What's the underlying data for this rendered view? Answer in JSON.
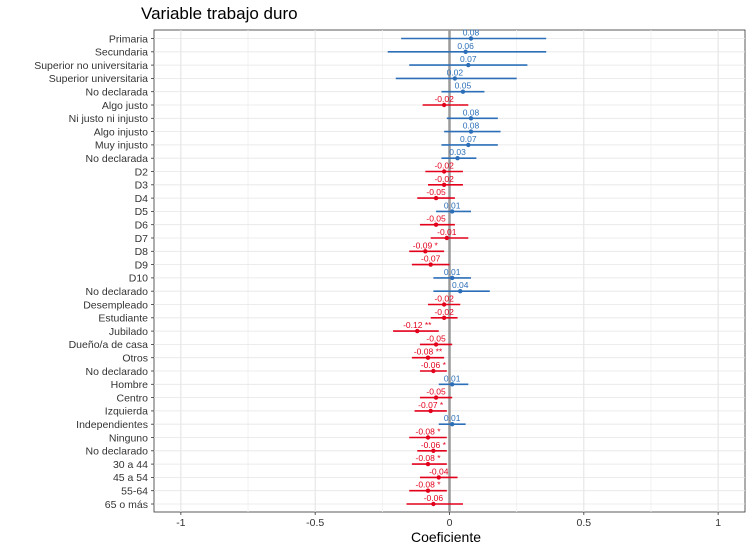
{
  "chart_data": {
    "type": "coefficient-plot",
    "title": "Variable trabajo duro",
    "xlabel": "Coeficiente",
    "xlim": [
      -1.1,
      1.1
    ],
    "xticks": [
      -1,
      -0.5,
      0,
      0.5,
      1
    ],
    "xtick_labels": [
      "-1",
      "-0.5",
      "0",
      "0.5",
      "1"
    ],
    "colors": {
      "positive": "#2c6fb8",
      "negative": "#e3001b",
      "zero_line": "#9a9a9a"
    },
    "rows": [
      {
        "label": "Primaria",
        "coef": 0.08,
        "lo": -0.18,
        "hi": 0.36,
        "text": "0.08"
      },
      {
        "label": "Secundaria",
        "coef": 0.06,
        "lo": -0.23,
        "hi": 0.36,
        "text": "0.06"
      },
      {
        "label": "Superior no universitaria",
        "coef": 0.07,
        "lo": -0.15,
        "hi": 0.29,
        "text": "0.07"
      },
      {
        "label": "Superior universitaria",
        "coef": 0.02,
        "lo": -0.2,
        "hi": 0.25,
        "text": "0.02"
      },
      {
        "label": "No declarada",
        "coef": 0.05,
        "lo": -0.03,
        "hi": 0.13,
        "text": "0.05"
      },
      {
        "label": "Algo justo",
        "coef": -0.02,
        "lo": -0.1,
        "hi": 0.07,
        "text": "-0.02"
      },
      {
        "label": "Ni justo ni injusto",
        "coef": 0.08,
        "lo": -0.01,
        "hi": 0.18,
        "text": "0.08"
      },
      {
        "label": "Algo injusto",
        "coef": 0.08,
        "lo": -0.02,
        "hi": 0.19,
        "text": "0.08"
      },
      {
        "label": "Muy injusto",
        "coef": 0.07,
        "lo": -0.03,
        "hi": 0.18,
        "text": "0.07"
      },
      {
        "label": "No declarada",
        "coef": 0.03,
        "lo": -0.03,
        "hi": 0.1,
        "text": "0.03"
      },
      {
        "label": "D2",
        "coef": -0.02,
        "lo": -0.09,
        "hi": 0.05,
        "text": "-0.02"
      },
      {
        "label": "D3",
        "coef": -0.02,
        "lo": -0.08,
        "hi": 0.05,
        "text": "-0.02"
      },
      {
        "label": "D4",
        "coef": -0.05,
        "lo": -0.12,
        "hi": 0.02,
        "text": "-0.05"
      },
      {
        "label": "D5",
        "coef": 0.01,
        "lo": -0.05,
        "hi": 0.08,
        "text": "0.01"
      },
      {
        "label": "D6",
        "coef": -0.05,
        "lo": -0.11,
        "hi": 0.02,
        "text": "-0.05"
      },
      {
        "label": "D7",
        "coef": -0.01,
        "lo": -0.07,
        "hi": 0.07,
        "text": "-0.01"
      },
      {
        "label": "D8",
        "coef": -0.09,
        "lo": -0.15,
        "hi": -0.02,
        "text": "-0.09 *"
      },
      {
        "label": "D9",
        "coef": -0.07,
        "lo": -0.14,
        "hi": 0.0,
        "text": "-0.07"
      },
      {
        "label": "D10",
        "coef": 0.01,
        "lo": -0.06,
        "hi": 0.08,
        "text": "0.01"
      },
      {
        "label": "No declarado",
        "coef": 0.04,
        "lo": -0.06,
        "hi": 0.15,
        "text": "0.04"
      },
      {
        "label": "Desempleado",
        "coef": -0.02,
        "lo": -0.08,
        "hi": 0.04,
        "text": "-0.02"
      },
      {
        "label": "Estudiante",
        "coef": -0.02,
        "lo": -0.07,
        "hi": 0.03,
        "text": "-0.02"
      },
      {
        "label": "Jubilado",
        "coef": -0.12,
        "lo": -0.21,
        "hi": -0.04,
        "text": "-0.12 **"
      },
      {
        "label": "Dueño/a de casa",
        "coef": -0.05,
        "lo": -0.11,
        "hi": 0.01,
        "text": "-0.05"
      },
      {
        "label": "Otros",
        "coef": -0.08,
        "lo": -0.14,
        "hi": -0.02,
        "text": "-0.08 **"
      },
      {
        "label": "No declarado",
        "coef": -0.06,
        "lo": -0.11,
        "hi": -0.01,
        "text": "-0.06 *"
      },
      {
        "label": "Hombre",
        "coef": 0.01,
        "lo": -0.04,
        "hi": 0.07,
        "text": "0.01"
      },
      {
        "label": "Centro",
        "coef": -0.05,
        "lo": -0.11,
        "hi": 0.01,
        "text": "-0.05"
      },
      {
        "label": "Izquierda",
        "coef": -0.07,
        "lo": -0.13,
        "hi": -0.01,
        "text": "-0.07 *"
      },
      {
        "label": "Independientes",
        "coef": 0.01,
        "lo": -0.04,
        "hi": 0.06,
        "text": "0.01"
      },
      {
        "label": "Ninguno",
        "coef": -0.08,
        "lo": -0.15,
        "hi": -0.01,
        "text": "-0.08 *"
      },
      {
        "label": "No declarado",
        "coef": -0.06,
        "lo": -0.12,
        "hi": -0.01,
        "text": "-0.06 *"
      },
      {
        "label": "30 a 44",
        "coef": -0.08,
        "lo": -0.14,
        "hi": -0.01,
        "text": "-0.08 *"
      },
      {
        "label": "45 a 54",
        "coef": -0.04,
        "lo": -0.11,
        "hi": 0.03,
        "text": "-0.04"
      },
      {
        "label": "55-64",
        "coef": -0.08,
        "lo": -0.15,
        "hi": -0.01,
        "text": "-0.08 *"
      },
      {
        "label": "65 o más",
        "coef": -0.06,
        "lo": -0.16,
        "hi": 0.05,
        "text": "-0.06"
      }
    ]
  }
}
